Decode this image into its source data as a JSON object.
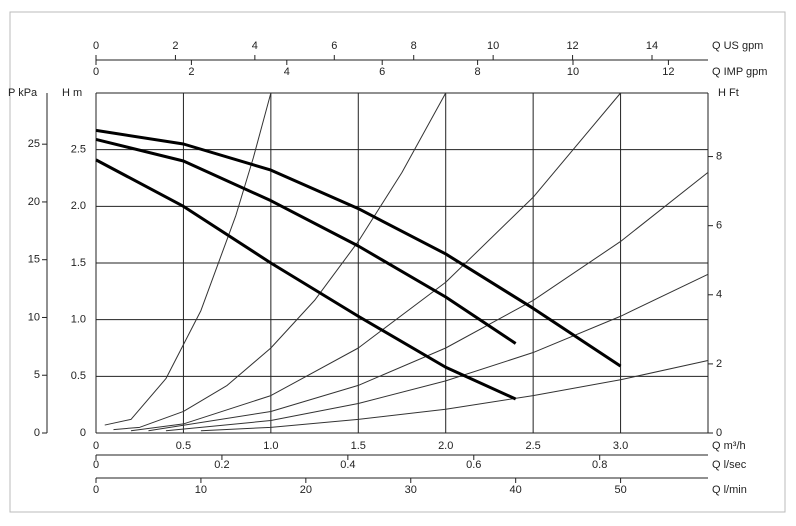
{
  "chart_data": {
    "type": "line",
    "x_label": "Q m³/h",
    "y_label": "H m",
    "xlim": [
      0,
      3.5
    ],
    "xticks": [
      0,
      0.5,
      {
        "value": 1,
        "label": "1.0"
      },
      1.5,
      {
        "value": 2,
        "label": "2.0"
      },
      2.5,
      {
        "value": 3,
        "label": "3.0"
      }
    ],
    "ylim": [
      0,
      3
    ],
    "yticks": [
      0,
      0.5,
      {
        "value": 1,
        "label": "1.0"
      },
      1.5,
      {
        "value": 2,
        "label": "2.0"
      },
      2.5
    ],
    "grid": true,
    "left_axis": {
      "label": "P kPa",
      "lim": [
        0,
        29.43
      ],
      "ticks": [
        0,
        5,
        10,
        15,
        20,
        25
      ]
    },
    "right_axis": {
      "label": "H Ft",
      "lim": [
        0,
        9.84
      ],
      "ticks": [
        0,
        2,
        4,
        6,
        8
      ]
    },
    "top_axes": [
      {
        "label": "Q US gpm",
        "lim": [
          0,
          15.41
        ],
        "ticks": [
          0,
          2,
          4,
          6,
          8,
          10,
          12,
          14
        ]
      },
      {
        "label": "Q IMP gpm",
        "lim": [
          0,
          12.83
        ],
        "ticks": [
          0,
          2,
          4,
          6,
          8,
          10,
          12
        ]
      }
    ],
    "bottom_axes": [
      {
        "label": "Q l/sec",
        "lim": [
          0,
          0.972
        ],
        "ticks": [
          0,
          0.2,
          0.4,
          0.6,
          0.8
        ]
      },
      {
        "label": "Q l/min",
        "lim": [
          0,
          58.33
        ],
        "ticks": [
          0,
          10,
          20,
          30,
          40,
          50
        ]
      }
    ],
    "series": [
      {
        "color": "#000000",
        "x": [
          0,
          0.5,
          1.0,
          1.5,
          2.0,
          2.5,
          3.0
        ],
        "values": [
          2.67,
          2.55,
          2.32,
          1.98,
          1.58,
          1.1,
          0.59
        ]
      },
      {
        "color": "#000000",
        "x": [
          0,
          0.5,
          1.0,
          1.5,
          2.0,
          2.4
        ],
        "values": [
          2.59,
          2.4,
          2.05,
          1.65,
          1.2,
          0.79
        ]
      },
      {
        "color": "#000000",
        "x": [
          0,
          0.5,
          1.0,
          1.5,
          2.0,
          2.4
        ],
        "values": [
          2.41,
          2.0,
          1.5,
          1.03,
          0.58,
          0.3
        ]
      }
    ],
    "system_curves": [
      {
        "color": "#333333",
        "x": [
          0.05,
          0.2,
          0.4,
          0.6,
          0.8,
          0.9,
          1.0
        ],
        "values": [
          0.07,
          0.12,
          0.48,
          1.08,
          1.92,
          2.43,
          3.0
        ]
      },
      {
        "color": "#333333",
        "x": [
          0.1,
          0.25,
          0.5,
          0.75,
          1.0,
          1.25,
          1.5,
          1.75,
          2.0
        ],
        "values": [
          0.03,
          0.05,
          0.19,
          0.42,
          0.75,
          1.17,
          1.69,
          2.3,
          3.0
        ]
      },
      {
        "color": "#333333",
        "x": [
          0.2,
          0.5,
          1.0,
          1.5,
          2.0,
          2.5,
          3.0
        ],
        "values": [
          0.02,
          0.08,
          0.33,
          0.75,
          1.33,
          2.08,
          3.0
        ]
      },
      {
        "color": "#333333",
        "x": [
          0.3,
          1.0,
          1.5,
          2.0,
          2.5,
          3.0,
          3.5
        ],
        "values": [
          0.02,
          0.19,
          0.42,
          0.75,
          1.17,
          1.69,
          2.3
        ]
      },
      {
        "color": "#333333",
        "x": [
          0.4,
          1.0,
          1.5,
          2.0,
          2.5,
          3.0,
          3.5
        ],
        "values": [
          0.02,
          0.11,
          0.26,
          0.46,
          0.71,
          1.03,
          1.4
        ]
      },
      {
        "color": "#333333",
        "x": [
          0.6,
          1.0,
          1.5,
          2.0,
          2.5,
          3.0,
          3.5
        ],
        "values": [
          0.02,
          0.05,
          0.12,
          0.21,
          0.33,
          0.47,
          0.64
        ]
      }
    ]
  }
}
